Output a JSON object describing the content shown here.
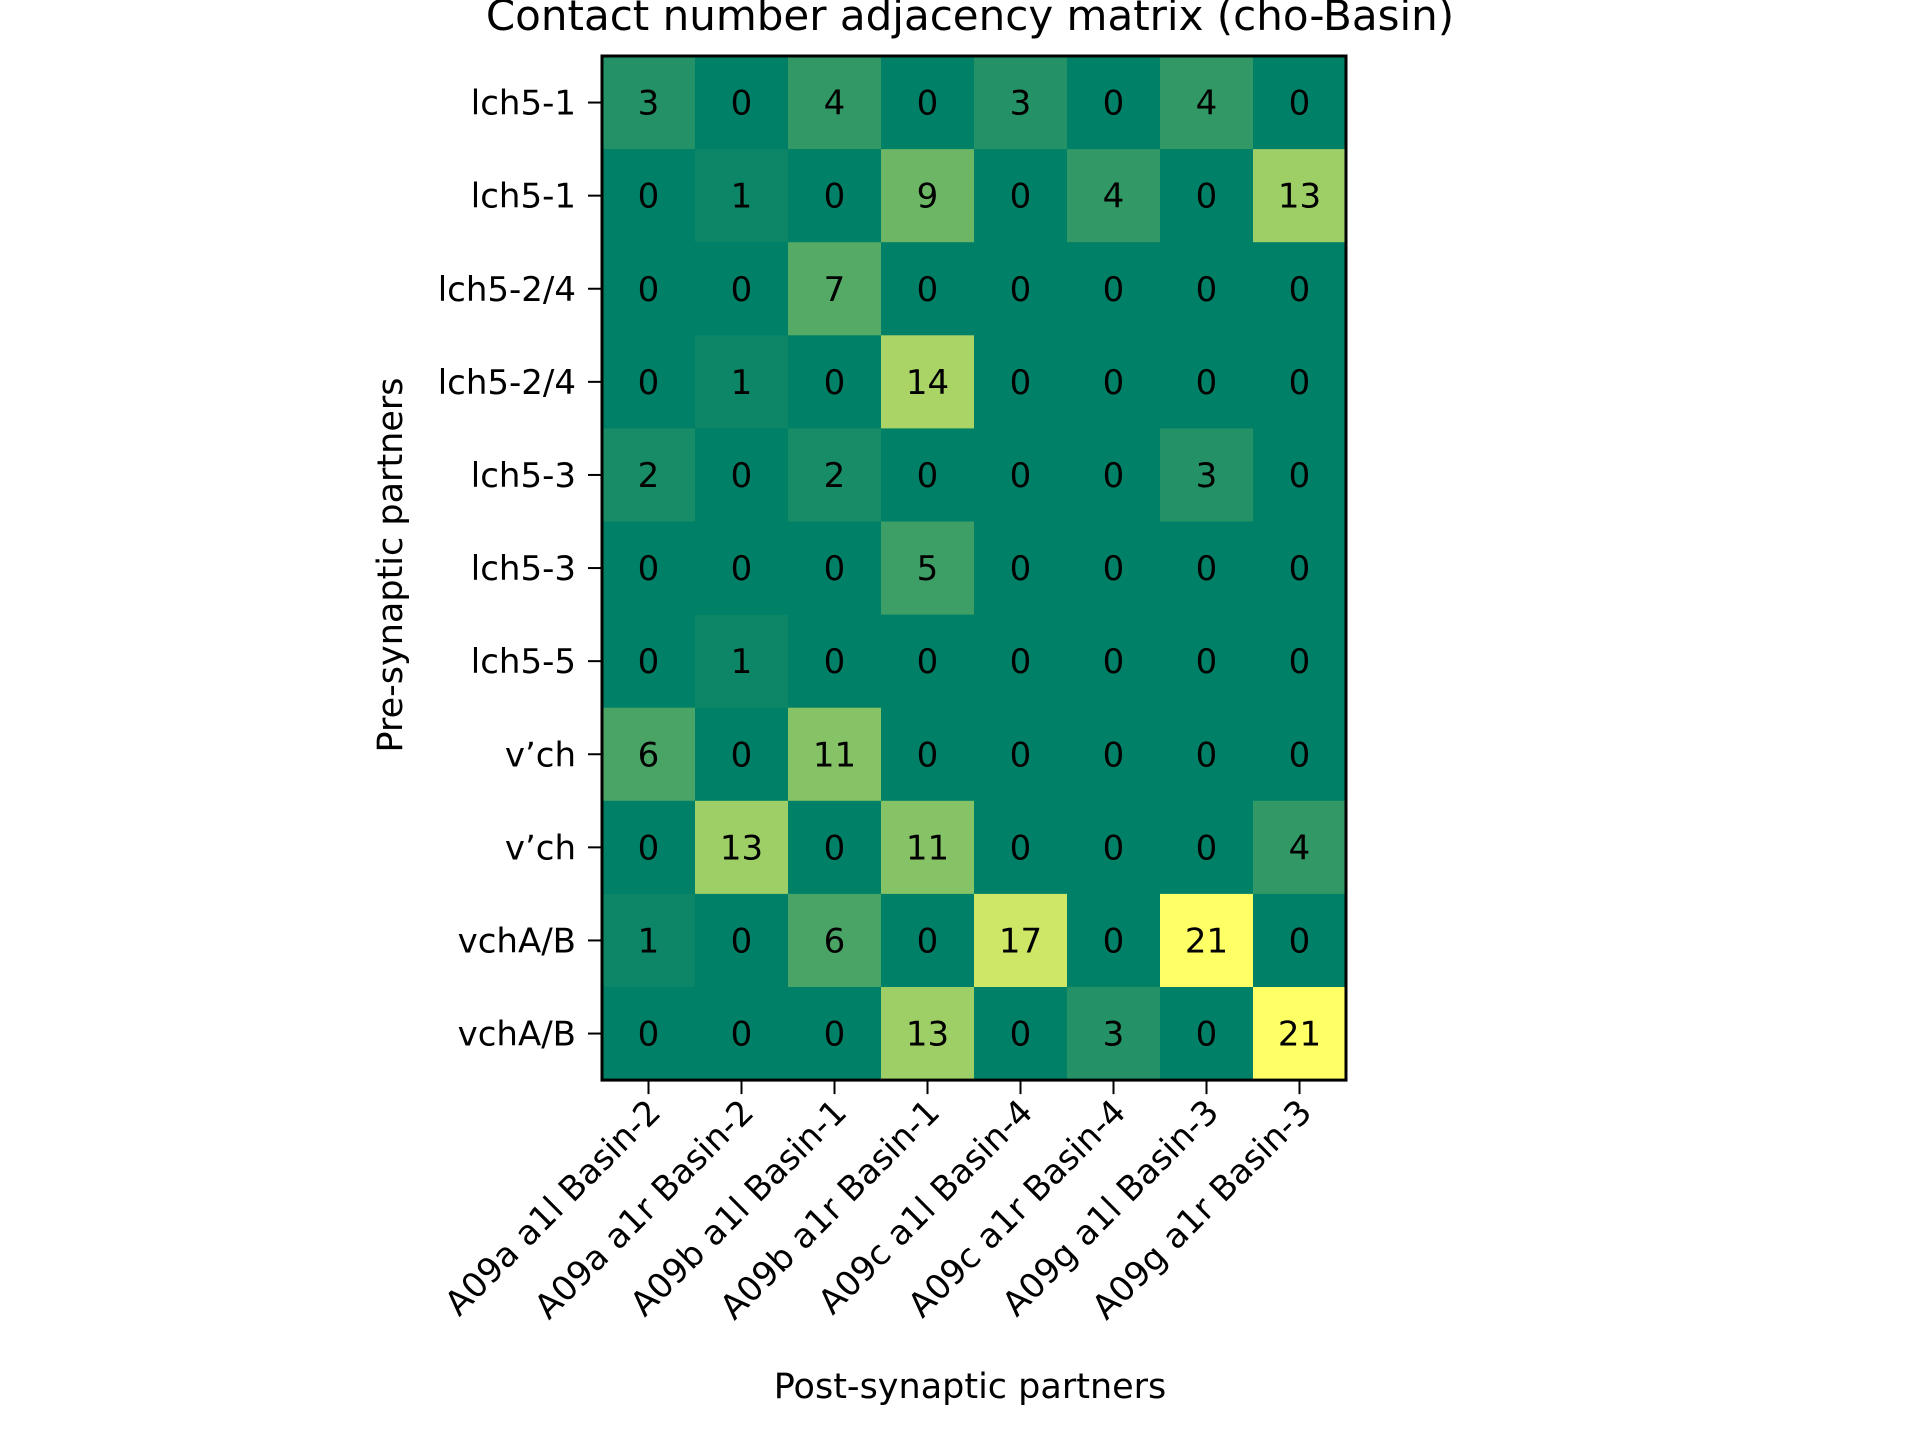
{
  "chart_data": {
    "type": "heatmap",
    "title": "Contact number adjacency matrix (cho-Basin)",
    "xlabel": "Post-synaptic partners",
    "ylabel": "Pre-synaptic partners",
    "x_categories": [
      "A09a a1l Basin-2",
      "A09a a1r Basin-2",
      "A09b a1l Basin-1",
      "A09b a1r Basin-1",
      "A09c a1l Basin-4",
      "A09c a1r Basin-4",
      "A09g a1l Basin-3",
      "A09g a1r Basin-3"
    ],
    "y_categories": [
      "lch5-1",
      "lch5-1",
      "lch5-2/4",
      "lch5-2/4",
      "lch5-3",
      "lch5-3",
      "lch5-5",
      "v’ch",
      "v’ch",
      "vchA/B",
      "vchA/B"
    ],
    "values": [
      [
        3,
        0,
        4,
        0,
        3,
        0,
        4,
        0
      ],
      [
        0,
        1,
        0,
        9,
        0,
        4,
        0,
        13
      ],
      [
        0,
        0,
        7,
        0,
        0,
        0,
        0,
        0
      ],
      [
        0,
        1,
        0,
        14,
        0,
        0,
        0,
        0
      ],
      [
        2,
        0,
        2,
        0,
        0,
        0,
        3,
        0
      ],
      [
        0,
        0,
        0,
        5,
        0,
        0,
        0,
        0
      ],
      [
        0,
        1,
        0,
        0,
        0,
        0,
        0,
        0
      ],
      [
        6,
        0,
        11,
        0,
        0,
        0,
        0,
        0
      ],
      [
        0,
        13,
        0,
        11,
        0,
        0,
        0,
        4
      ],
      [
        1,
        0,
        6,
        0,
        17,
        0,
        21,
        0
      ],
      [
        0,
        0,
        0,
        13,
        0,
        3,
        0,
        21
      ]
    ],
    "colormap": "summer",
    "value_range": [
      0,
      21
    ],
    "grid": false,
    "legend": "none",
    "colors": {
      "min": "#008066",
      "max": "#ffff66",
      "frame": "#000000",
      "text": "#000000"
    }
  }
}
